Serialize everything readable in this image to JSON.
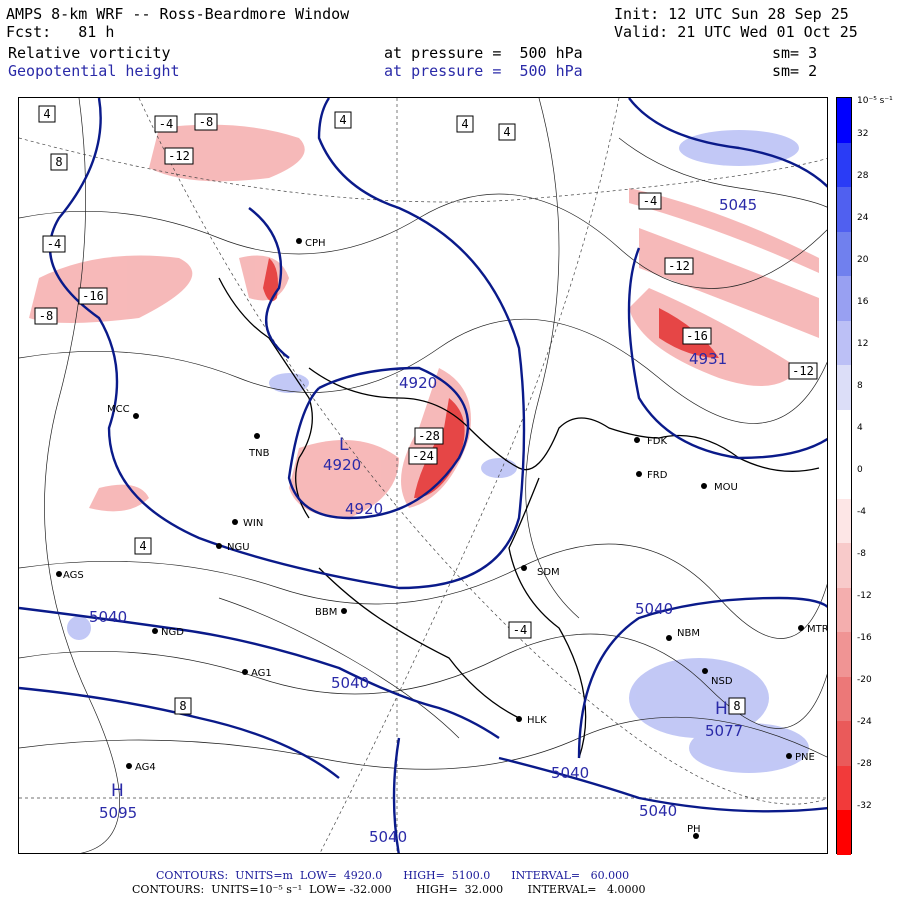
{
  "header": {
    "title": "AMPS 8-km WRF -- Ross-Beardmore Window",
    "init": "Init: 12 UTC Sun 28 Sep 25",
    "fcst": "Fcst:   81 h",
    "valid": "Valid: 21 UTC Wed 01 Oct 25",
    "field1": {
      "name": "Relative vorticity",
      "pressure": "at pressure =  500 hPa",
      "sm": "sm= 3"
    },
    "field2": {
      "name": "Geopotential height",
      "pressure": "at pressure =  500 hPa",
      "sm": "sm= 2"
    }
  },
  "colorbar": {
    "unit": "10⁻⁵ s⁻¹",
    "labels": [
      "32",
      "28",
      "24",
      "20",
      "16",
      "12",
      "8",
      "4",
      "0",
      "-4",
      "-8",
      "-12",
      "-16",
      "-20",
      "-24",
      "-28",
      "-32"
    ],
    "colors": [
      "#0000ff",
      "#2a3cf6",
      "#5060f0",
      "#7080ee",
      "#98a0f2",
      "#bcc0f6",
      "#dcdef8",
      "#ffffff",
      "#ffffff",
      "#fde6e6",
      "#f8caca",
      "#f4aeae",
      "#f09494",
      "#ec7878",
      "#ea5a5a",
      "#f23a3a",
      "#ff0000"
    ]
  },
  "footer": {
    "line1": "CONTOURS:  UNITS=m  LOW=  4920.0      HIGH=  5100.0      INTERVAL=   60.000",
    "line2": "CONTOURS:  UNITS=10⁻⁵ s⁻¹  LOW= -32.000       HIGH=  32.000       INTERVAL=   4.0000"
  },
  "map": {
    "stations": [
      "CPH",
      "MCC",
      "TNB",
      "NGU",
      "AGS",
      "NGD",
      "AG1",
      "AG4",
      "BBM",
      "HLK",
      "SDM",
      "FDK",
      "FRD",
      "MOU",
      "NBM",
      "NSD",
      "PNE",
      "MTR",
      "WIN",
      "PH"
    ],
    "height_labels": [
      "4920",
      "4920",
      "4920",
      "4931",
      "5040",
      "5040",
      "5040",
      "5040",
      "5040",
      "5040",
      "5045",
      "5077",
      "5095"
    ],
    "highs_lows": [
      "L",
      "H",
      "H"
    ],
    "vorticity_labels": [
      "4",
      "8",
      "-4",
      "-8",
      "-12",
      "-16",
      "-24",
      "-28",
      "4",
      "-4",
      "-8",
      "4",
      "4",
      "8",
      "-12",
      "4",
      "-4",
      "-16",
      "-12",
      "-4",
      "8"
    ]
  }
}
